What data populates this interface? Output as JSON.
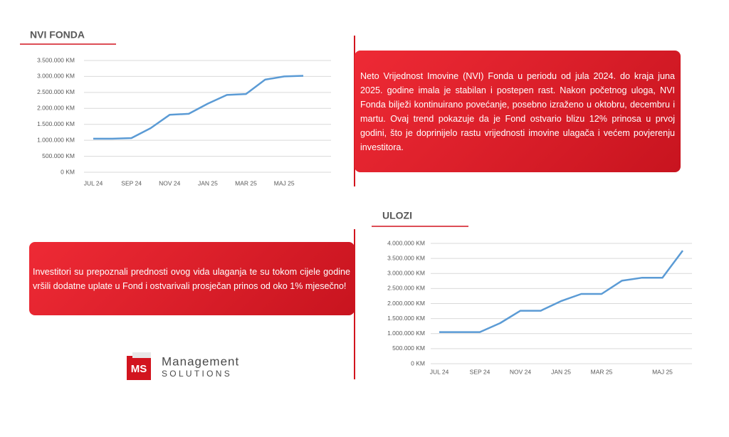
{
  "chart_data": [
    {
      "type": "line",
      "title": "NVI FONDA",
      "categories": [
        "JUL 24",
        null,
        "SEP 24",
        null,
        "NOV 24",
        null,
        "JAN 25",
        null,
        "MAR 25",
        null,
        "MAJ 25",
        null
      ],
      "values": [
        1050000,
        1050000,
        1070000,
        1380000,
        1800000,
        1830000,
        2150000,
        2420000,
        2450000,
        2900000,
        3000000,
        3020000
      ],
      "color": "#5b9bd5",
      "ylim": [
        0,
        3500000
      ],
      "yticks": [
        {
          "value": 0,
          "label": "0 KM"
        },
        {
          "value": 500000,
          "label": "500.000 KM"
        },
        {
          "value": 1000000,
          "label": "1.000.000 KM"
        },
        {
          "value": 1500000,
          "label": "1.500.000 KM"
        },
        {
          "value": 2000000,
          "label": "2.000.000 KM"
        },
        {
          "value": 2500000,
          "label": "2.500.000 KM"
        },
        {
          "value": 3000000,
          "label": "3.000.000 KM"
        },
        {
          "value": 3500000,
          "label": "3.500.000 KM"
        }
      ],
      "grid": true
    },
    {
      "type": "line",
      "title": "ULOZI",
      "categories": [
        "JUL 24",
        null,
        "SEP 24",
        null,
        "NOV 24",
        null,
        "JAN 25",
        null,
        "MAR 25",
        null,
        null,
        "MAJ 25",
        null
      ],
      "values": [
        1050000,
        1050000,
        1050000,
        1350000,
        1760000,
        1760000,
        2080000,
        2320000,
        2320000,
        2760000,
        2860000,
        2860000,
        3760000
      ],
      "color": "#5b9bd5",
      "ylim": [
        0,
        4000000
      ],
      "yticks": [
        {
          "value": 0,
          "label": "0 KM"
        },
        {
          "value": 500000,
          "label": "500.000 KM"
        },
        {
          "value": 1000000,
          "label": "1.000.000 KM"
        },
        {
          "value": 1500000,
          "label": "1.500.000 KM"
        },
        {
          "value": 2000000,
          "label": "2.000.000 KM"
        },
        {
          "value": 2500000,
          "label": "2.500.000 KM"
        },
        {
          "value": 3000000,
          "label": "3.000.000 KM"
        },
        {
          "value": 3500000,
          "label": "3.500.000 KM"
        },
        {
          "value": 4000000,
          "label": "4.000.000 KM"
        }
      ],
      "grid": true
    }
  ],
  "notes": [
    "Neto Vrijednost Imovine (NVI) Fonda u periodu od jula 2024. do kraja juna 2025. godine imala je stabilan i postepen rast. Nakon početnog uloga, NVI Fonda bilježi kontinuirano povećanje, posebno izraženo u oktobru, decembru i martu. Ovaj trend pokazuje da je Fond ostvario blizu 12% prinosa u prvoj godini, što je doprinijelo rastu vrijednosti imovine ulagača i većem povjerenju investitora.",
    "Investitori su prepoznali prednosti ovog vida ulaganja te su tokom cijele godine vršili dodatne uplate u Fond i ostvarivali prosječan prinos od oko 1% mjesečno!"
  ],
  "logo": {
    "mark": "MS",
    "name": "Management",
    "tagline": "SOLUTIONS"
  }
}
